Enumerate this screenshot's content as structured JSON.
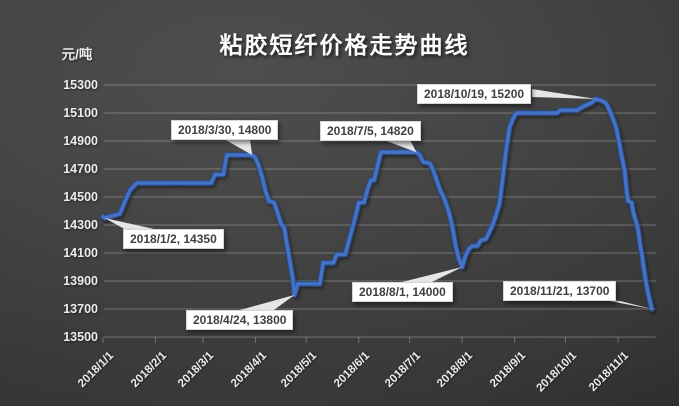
{
  "colors": {
    "background_dark": "#3d3d3d",
    "line": "#4472c4",
    "line_outline": "#2b4d8e",
    "gridline": "#8a8a8a",
    "text": "#ececec",
    "callout_bg": "#ffffff",
    "callout_text": "#3f3f3f"
  },
  "chart_data": {
    "type": "line",
    "title": "粘胶短纤价格走势曲线",
    "xlabel": "",
    "ylabel": "元/吨",
    "ylim": [
      13500,
      15300
    ],
    "grid": true,
    "legend": false,
    "y_ticks": [
      15300,
      15100,
      14900,
      14700,
      14500,
      14300,
      14100,
      13900,
      13700,
      13500
    ],
    "x_ticks": [
      "2018/1/1",
      "2018/2/1",
      "2018/3/1",
      "2018/4/1",
      "2018/5/1",
      "2018/6/1",
      "2018/7/1",
      "2018/8/1",
      "2018/9/1",
      "2018/10/1",
      "2018/11/1"
    ],
    "series": [
      {
        "name": "粘胶短纤价格",
        "points": [
          [
            "2018/1/1",
            14360
          ],
          [
            "2018/1/2",
            14350
          ],
          [
            "2018/1/11",
            14380
          ],
          [
            "2018/1/14",
            14470
          ],
          [
            "2018/1/17",
            14550
          ],
          [
            "2018/1/21",
            14600
          ],
          [
            "2018/3/6",
            14600
          ],
          [
            "2018/3/8",
            14660
          ],
          [
            "2018/3/13",
            14660
          ],
          [
            "2018/3/15",
            14800
          ],
          [
            "2018/3/30",
            14800
          ],
          [
            "2018/4/1",
            14780
          ],
          [
            "2018/4/3",
            14720
          ],
          [
            "2018/4/5",
            14640
          ],
          [
            "2018/4/7",
            14540
          ],
          [
            "2018/4/9",
            14470
          ],
          [
            "2018/4/12",
            14460
          ],
          [
            "2018/4/14",
            14390
          ],
          [
            "2018/4/16",
            14310
          ],
          [
            "2018/4/18",
            14280
          ],
          [
            "2018/4/19",
            14200
          ],
          [
            "2018/4/21",
            14060
          ],
          [
            "2018/4/23",
            13920
          ],
          [
            "2018/4/24",
            13800
          ],
          [
            "2018/4/26",
            13880
          ],
          [
            "2018/5/9",
            13880
          ],
          [
            "2018/5/11",
            14030
          ],
          [
            "2018/5/17",
            14030
          ],
          [
            "2018/5/19",
            14090
          ],
          [
            "2018/5/24",
            14090
          ],
          [
            "2018/5/26",
            14180
          ],
          [
            "2018/5/28",
            14270
          ],
          [
            "2018/5/30",
            14360
          ],
          [
            "2018/6/1",
            14460
          ],
          [
            "2018/6/4",
            14460
          ],
          [
            "2018/6/6",
            14550
          ],
          [
            "2018/6/8",
            14620
          ],
          [
            "2018/6/10",
            14620
          ],
          [
            "2018/6/12",
            14720
          ],
          [
            "2018/6/14",
            14820
          ],
          [
            "2018/7/5",
            14820
          ],
          [
            "2018/7/7",
            14800
          ],
          [
            "2018/7/9",
            14750
          ],
          [
            "2018/7/13",
            14740
          ],
          [
            "2018/7/15",
            14690
          ],
          [
            "2018/7/17",
            14620
          ],
          [
            "2018/7/19",
            14550
          ],
          [
            "2018/7/21",
            14500
          ],
          [
            "2018/7/24",
            14400
          ],
          [
            "2018/7/26",
            14300
          ],
          [
            "2018/7/28",
            14160
          ],
          [
            "2018/7/30",
            14060
          ],
          [
            "2018/8/1",
            14000
          ],
          [
            "2018/8/3",
            14080
          ],
          [
            "2018/8/5",
            14130
          ],
          [
            "2018/8/7",
            14150
          ],
          [
            "2018/8/10",
            14150
          ],
          [
            "2018/8/12",
            14190
          ],
          [
            "2018/8/15",
            14200
          ],
          [
            "2018/8/17",
            14250
          ],
          [
            "2018/8/19",
            14300
          ],
          [
            "2018/8/21",
            14370
          ],
          [
            "2018/8/23",
            14450
          ],
          [
            "2018/8/25",
            14640
          ],
          [
            "2018/8/27",
            14840
          ],
          [
            "2018/8/29",
            15000
          ],
          [
            "2018/8/31",
            15060
          ],
          [
            "2018/9/2",
            15100
          ],
          [
            "2018/9/26",
            15100
          ],
          [
            "2018/9/28",
            15120
          ],
          [
            "2018/10/8",
            15120
          ],
          [
            "2018/10/12",
            15150
          ],
          [
            "2018/10/16",
            15170
          ],
          [
            "2018/10/19",
            15200
          ],
          [
            "2018/10/22",
            15190
          ],
          [
            "2018/10/25",
            15170
          ],
          [
            "2018/10/27",
            15120
          ],
          [
            "2018/10/29",
            15060
          ],
          [
            "2018/10/31",
            14990
          ],
          [
            "2018/11/2",
            14870
          ],
          [
            "2018/11/3",
            14800
          ],
          [
            "2018/11/5",
            14680
          ],
          [
            "2018/11/6",
            14550
          ],
          [
            "2018/11/7",
            14470
          ],
          [
            "2018/11/9",
            14460
          ],
          [
            "2018/11/10",
            14390
          ],
          [
            "2018/11/12",
            14310
          ],
          [
            "2018/11/13",
            14260
          ],
          [
            "2018/11/14",
            14160
          ],
          [
            "2018/11/15",
            14100
          ],
          [
            "2018/11/16",
            14010
          ],
          [
            "2018/11/17",
            13930
          ],
          [
            "2018/11/18",
            13860
          ],
          [
            "2018/11/19",
            13800
          ],
          [
            "2018/11/20",
            13750
          ],
          [
            "2018/11/21",
            13700
          ]
        ]
      }
    ],
    "annotations": [
      {
        "label": "2018/1/2, 14350",
        "date": "2018/1/2",
        "value": 14350
      },
      {
        "label": "2018/3/30, 14800",
        "date": "2018/3/30",
        "value": 14800
      },
      {
        "label": "2018/4/24, 13800",
        "date": "2018/4/24",
        "value": 13800
      },
      {
        "label": "2018/7/5, 14820",
        "date": "2018/7/5",
        "value": 14820
      },
      {
        "label": "2018/8/1, 14000",
        "date": "2018/8/1",
        "value": 14000
      },
      {
        "label": "2018/10/19, 15200",
        "date": "2018/10/19",
        "value": 15200
      },
      {
        "label": "2018/11/21, 13700",
        "date": "2018/11/21",
        "value": 13700
      }
    ]
  }
}
